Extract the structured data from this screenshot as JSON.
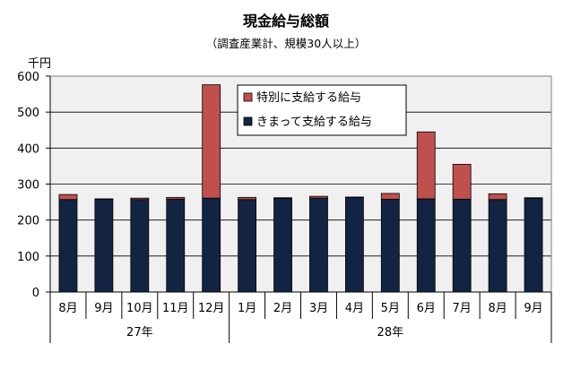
{
  "title": "現金給与総額",
  "subtitle": "（調査産業計、規模30人以上）",
  "chart_data": {
    "type": "bar",
    "stacked": true,
    "unit_label": "千円",
    "ylim": [
      0,
      600
    ],
    "yticks": [
      0,
      100,
      200,
      300,
      400,
      500,
      600
    ],
    "grid": true,
    "legend_position": "top-right",
    "categories": [
      "8月",
      "9月",
      "10月",
      "11月",
      "12月",
      "1月",
      "2月",
      "3月",
      "4月",
      "5月",
      "6月",
      "7月",
      "8月",
      "9月"
    ],
    "year_groups": [
      {
        "label": "27年",
        "start": 0,
        "count": 5
      },
      {
        "label": "28年",
        "start": 5,
        "count": 9
      }
    ],
    "series": [
      {
        "name": "きまって支給する給与",
        "color": "#132442",
        "values": [
          257,
          258,
          257,
          258,
          261,
          257,
          260,
          261,
          263,
          258,
          259,
          258,
          257,
          260
        ]
      },
      {
        "name": "特別に支給する給与",
        "color": "#c0504d",
        "values": [
          14,
          1,
          4,
          5,
          315,
          6,
          2,
          5,
          1,
          16,
          186,
          97,
          16,
          2
        ]
      }
    ]
  }
}
